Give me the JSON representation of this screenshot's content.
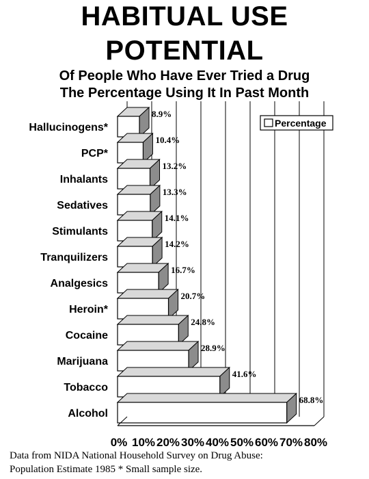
{
  "title_lines": [
    "HABITUAL USE",
    "POTENTIAL"
  ],
  "subtitle_lines": [
    "Of People Who Have Ever Tried a Drug",
    "The  Percentage Using It In Past Month"
  ],
  "footnote_lines": [
    "Data from NIDA National Household Survey on Drug Abuse:",
    "Population Estimate 1985  * Small sample size."
  ],
  "chart_data": {
    "type": "bar",
    "orientation": "horizontal",
    "title": "HABITUAL USE POTENTIAL",
    "subtitle": "Of People Who Have Ever Tried a Drug The  Percentage Using It In Past Month",
    "categories": [
      "Hallucinogens*",
      "PCP*",
      "Inhalants",
      "Sedatives",
      "Stimulants",
      "Tranquilizers",
      "Analgesics",
      "Heroin*",
      "Cocaine",
      "Marijuana",
      "Tobacco",
      "Alcohol"
    ],
    "series": [
      {
        "name": "Percentage",
        "values": [
          8.9,
          10.4,
          13.2,
          13.3,
          14.1,
          14.2,
          16.7,
          20.7,
          24.8,
          28.9,
          41.6,
          68.8
        ],
        "labels": [
          "8.9%",
          "10.4%",
          "13.2%",
          "13.3%",
          "14.1%",
          "14.2%",
          "16.7%",
          "20.7%",
          "24.8%",
          "28.9%",
          "41.6%",
          "68.8%"
        ]
      }
    ],
    "xlim": [
      0,
      80
    ],
    "x_ticks": [
      "0%",
      "10%",
      "20%",
      "30%",
      "40%",
      "50%",
      "60%",
      "70%",
      "80%"
    ],
    "gridlines": "vertical",
    "legend_position": "top-right",
    "bar_style": "3d",
    "colors": {
      "bar_face": "#ffffff",
      "bar_top": "#d9d9d9",
      "bar_side": "#8c8c8c",
      "outline": "#000000"
    }
  }
}
